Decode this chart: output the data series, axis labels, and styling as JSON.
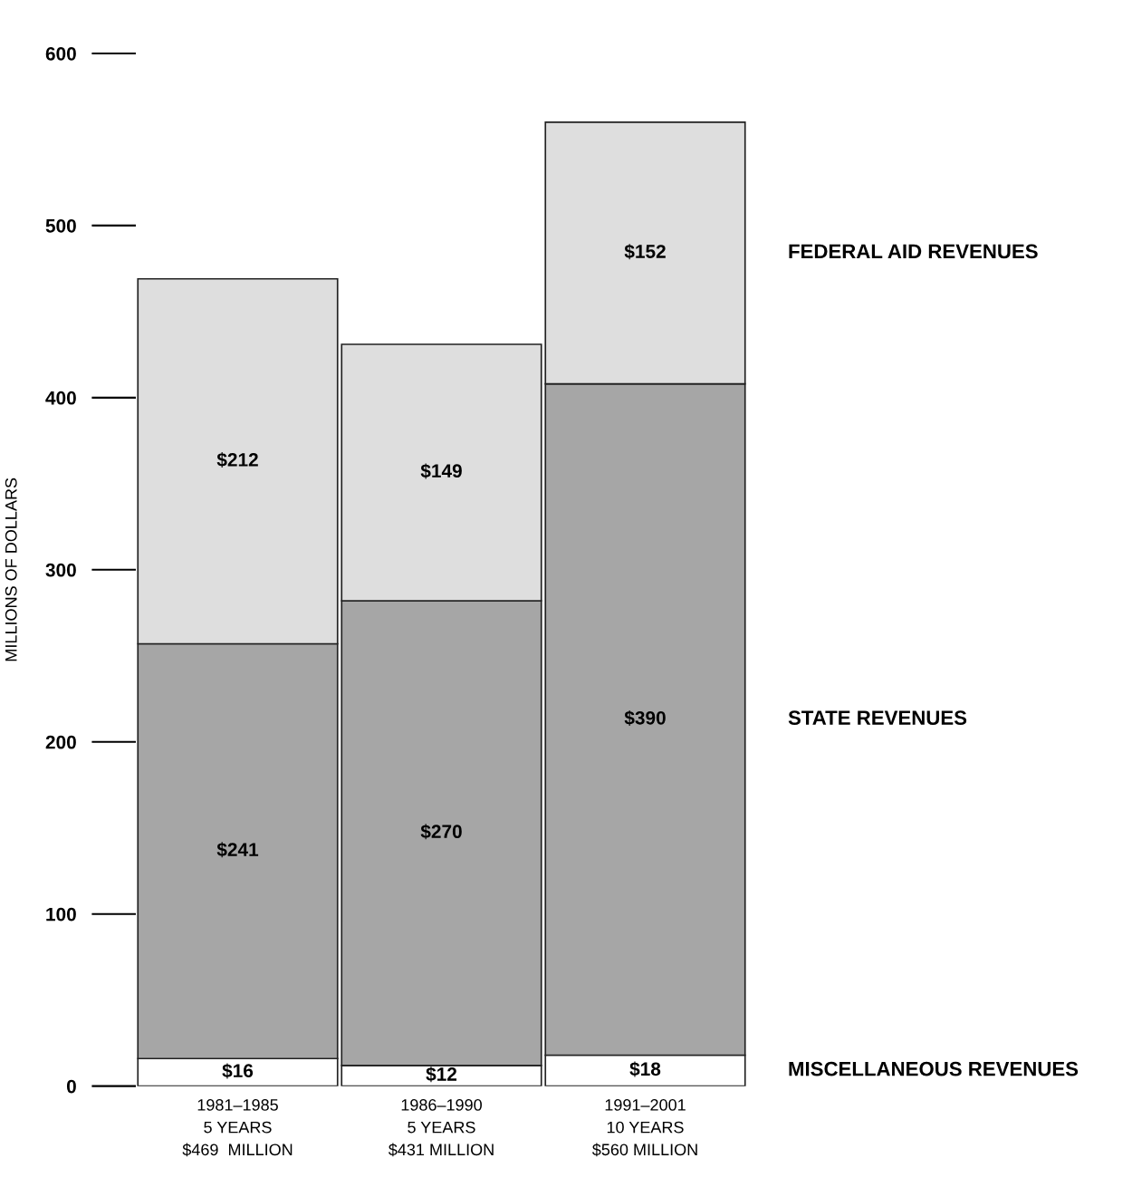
{
  "chart_data": {
    "type": "bar",
    "stacked": true,
    "ylabel": "MILLIONS OF DOLLARS",
    "categories": [
      "1981–1985\n5 YEARS\n$469  MILLION",
      "1986–1990\n5 YEARS\n$431 MILLION",
      "1991–2001\n10 YEARS\n$560 MILLION"
    ],
    "series": [
      {
        "name": "MISCELLANEOUS REVENUES",
        "color": "#ffffff",
        "values": [
          16,
          12,
          18
        ],
        "value_labels": [
          "$16",
          "$12",
          "$18"
        ]
      },
      {
        "name": "STATE REVENUES",
        "color": "#a6a6a6",
        "values": [
          241,
          270,
          390
        ],
        "value_labels": [
          "$241",
          "$270",
          "$390"
        ]
      },
      {
        "name": "FEDERAL AID REVENUES",
        "color": "#dedede",
        "values": [
          212,
          149,
          152
        ],
        "value_labels": [
          "$212",
          "$149",
          "$152"
        ]
      }
    ],
    "ylim": [
      0,
      600
    ],
    "yticks": [
      0,
      100,
      200,
      300,
      400,
      500,
      600
    ],
    "grid": false,
    "legend": false
  }
}
